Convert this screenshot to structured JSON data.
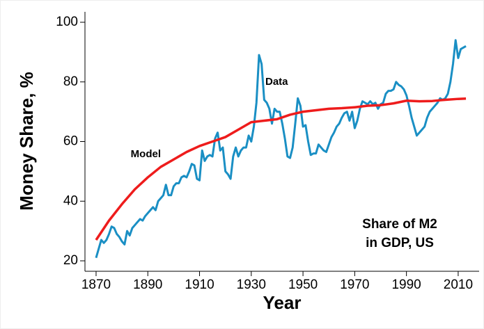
{
  "chart_data": {
    "type": "line",
    "xlabel": "Year",
    "ylabel": "Money Share, %",
    "annotation": [
      "Share of M2",
      "in GDP, US"
    ],
    "xlim": [
      1865.7,
      2018.1
    ],
    "ylim": [
      16.5,
      103.5
    ],
    "xticks": [
      1870,
      1890,
      1910,
      1930,
      1950,
      1970,
      1990,
      2010
    ],
    "yticks": [
      20,
      40,
      60,
      80,
      100
    ],
    "grid": false,
    "series": [
      {
        "name": "Data",
        "color": "#1a8fc4",
        "x": [
          1870,
          1871,
          1872,
          1873,
          1874,
          1875,
          1876,
          1877,
          1878,
          1879,
          1880,
          1881,
          1882,
          1883,
          1884,
          1885,
          1886,
          1887,
          1888,
          1889,
          1890,
          1891,
          1892,
          1893,
          1894,
          1895,
          1896,
          1897,
          1898,
          1899,
          1900,
          1901,
          1902,
          1903,
          1904,
          1905,
          1906,
          1907,
          1908,
          1909,
          1910,
          1911,
          1912,
          1913,
          1914,
          1915,
          1916,
          1917,
          1918,
          1919,
          1920,
          1921,
          1922,
          1923,
          1924,
          1925,
          1926,
          1927,
          1928,
          1929,
          1930,
          1931,
          1932,
          1933,
          1934,
          1935,
          1936,
          1937,
          1938,
          1939,
          1940,
          1941,
          1942,
          1943,
          1944,
          1945,
          1946,
          1947,
          1948,
          1949,
          1950,
          1951,
          1952,
          1953,
          1954,
          1955,
          1956,
          1957,
          1958,
          1959,
          1960,
          1961,
          1962,
          1963,
          1964,
          1965,
          1966,
          1967,
          1968,
          1969,
          1970,
          1971,
          1972,
          1973,
          1974,
          1975,
          1976,
          1977,
          1978,
          1979,
          1980,
          1981,
          1982,
          1983,
          1984,
          1985,
          1986,
          1987,
          1988,
          1989,
          1990,
          1991,
          1992,
          1993,
          1994,
          1995,
          1996,
          1997,
          1998,
          1999,
          2000,
          2001,
          2002,
          2003,
          2004,
          2005,
          2006,
          2007,
          2008,
          2009,
          2010,
          2011,
          2012,
          2013
        ],
        "values": [
          21,
          24,
          27,
          26,
          27,
          29,
          31.5,
          31,
          29,
          28,
          26.5,
          25.5,
          30,
          28.5,
          31,
          32,
          33,
          34,
          33.5,
          35,
          36,
          37,
          38,
          37,
          40,
          41,
          42,
          45.5,
          42,
          42,
          45,
          46,
          46,
          48,
          48.5,
          48,
          50,
          52.5,
          52,
          47.5,
          47,
          57,
          53.5,
          55,
          55.5,
          55,
          61,
          63,
          57,
          58,
          50,
          49,
          47.5,
          55,
          58,
          55,
          57,
          58,
          58,
          62,
          60,
          65,
          73,
          89,
          86,
          74,
          73,
          71,
          66,
          71,
          70,
          70,
          66,
          61,
          55,
          54.5,
          58,
          66,
          74.5,
          72,
          65,
          65.5,
          60,
          55.5,
          56,
          56,
          59,
          58,
          57,
          56.5,
          59,
          61.5,
          63,
          65,
          66,
          68,
          69.5,
          70,
          67,
          70,
          64.5,
          67,
          71,
          73.5,
          73,
          72.5,
          73.5,
          72.5,
          73,
          71,
          72.5,
          73,
          76,
          77,
          77,
          77.5,
          80,
          79,
          78.5,
          77.5,
          75.5,
          72,
          68,
          65,
          62,
          63,
          64,
          65,
          68,
          70,
          71,
          72,
          73,
          74.5,
          74,
          74.5,
          76,
          80,
          86,
          94,
          88,
          91,
          91.5,
          92
        ]
      },
      {
        "name": "Model",
        "color": "#ee1c1c",
        "x": [
          1870,
          1875,
          1880,
          1885,
          1890,
          1895,
          1900,
          1905,
          1910,
          1915,
          1920,
          1925,
          1930,
          1935,
          1940,
          1945,
          1950,
          1955,
          1960,
          1965,
          1970,
          1975,
          1980,
          1985,
          1990,
          1995,
          2000,
          2005,
          2010,
          2013
        ],
        "values": [
          27,
          33.5,
          39,
          44,
          48,
          51.5,
          54,
          56.5,
          58.5,
          60,
          61.5,
          64,
          66.5,
          67,
          67.5,
          69,
          70,
          70.5,
          71,
          71.2,
          71.5,
          72,
          72.2,
          72.8,
          73.7,
          73.5,
          73.6,
          74,
          74.3,
          74.4
        ]
      }
    ]
  }
}
